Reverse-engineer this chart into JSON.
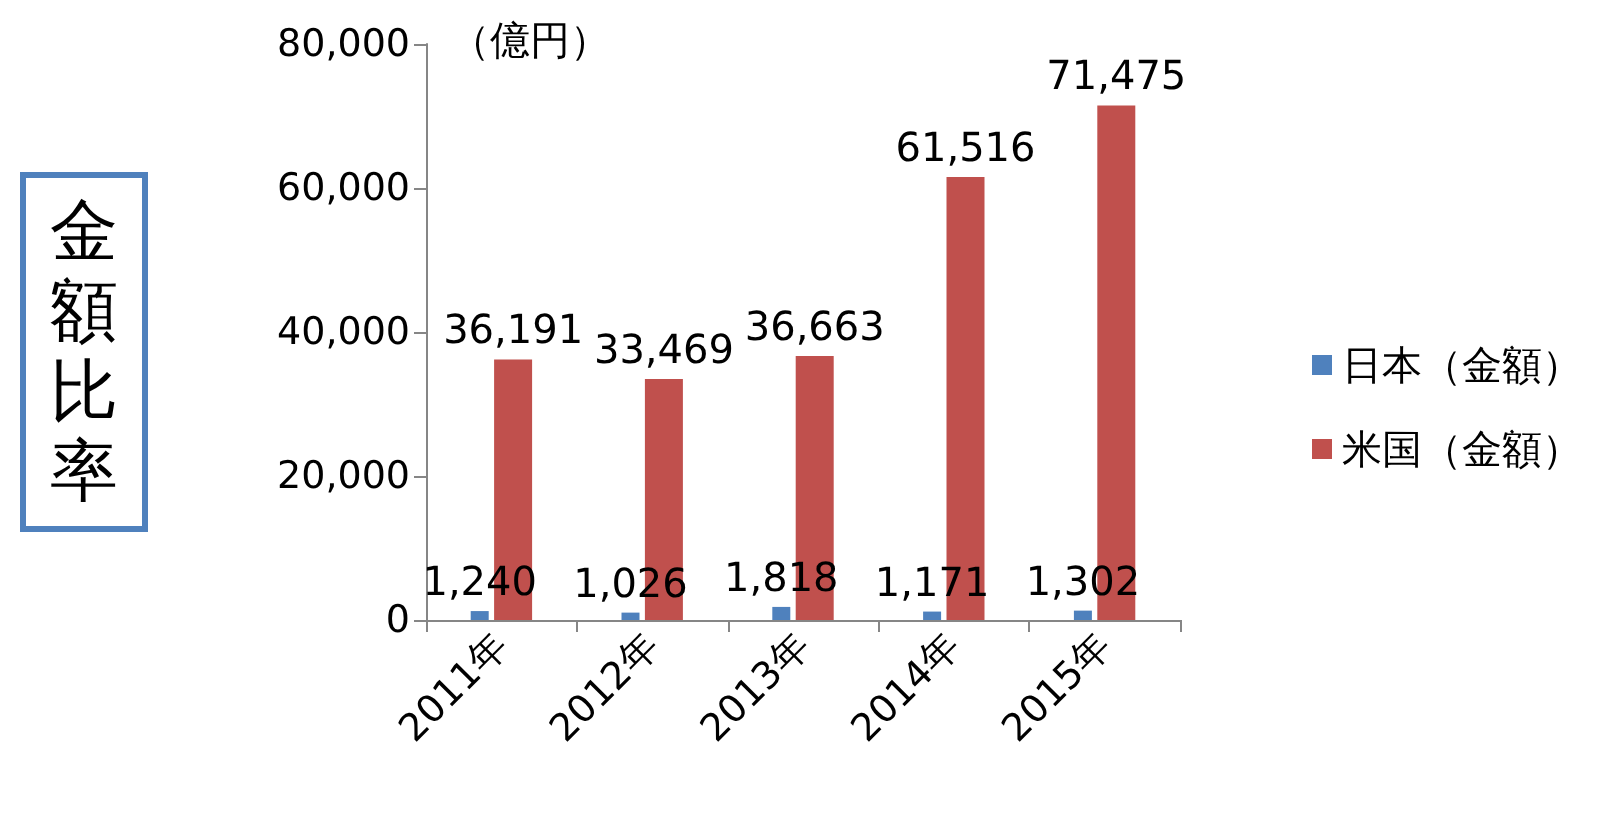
{
  "chart_data": {
    "type": "bar",
    "ylabel": "金額比率",
    "categories": [
      "2011年",
      "2012年",
      "2013年",
      "2014年",
      "2015年"
    ],
    "series": [
      {
        "name": "日本（金額）",
        "color": "#4f81bd",
        "values": [
          1240,
          1026,
          1818,
          1171,
          1302
        ],
        "value_labels": [
          "1,240",
          "1,026",
          "1,818",
          "1,171",
          "1,302"
        ]
      },
      {
        "name": "米国（金額）",
        "color": "#c0504d",
        "values": [
          36191,
          33469,
          36663,
          61516,
          71475
        ],
        "value_labels": [
          "36,191",
          "33,469",
          "36,663",
          "61,516",
          "71,475"
        ]
      }
    ],
    "ylim": [
      0,
      80000
    ],
    "yticks": [
      {
        "value": 0,
        "label": "0"
      },
      {
        "value": 20000,
        "label": "20,000"
      },
      {
        "value": 40000,
        "label": "40,000"
      },
      {
        "value": 60000,
        "label": "60,000"
      },
      {
        "value": 80000,
        "label": "80,000"
      }
    ],
    "annotations": [
      "（億円）"
    ],
    "grid": false,
    "legend": "right"
  }
}
